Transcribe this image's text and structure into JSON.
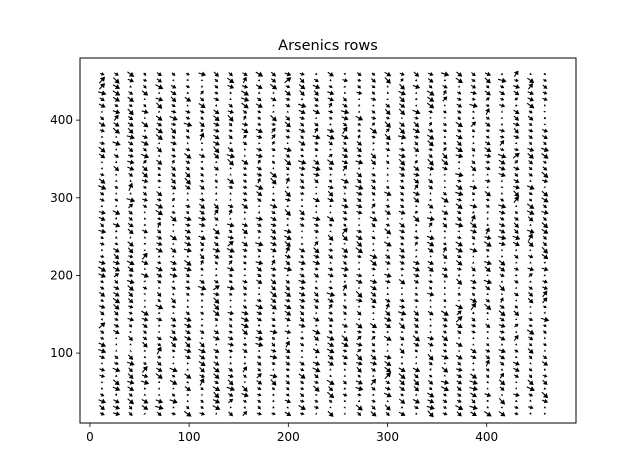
{
  "chart_data": {
    "type": "quiver",
    "title": "Arsenics rows",
    "xlabel": "",
    "ylabel": "",
    "xlim": [
      -10,
      490
    ],
    "ylim": [
      10,
      480
    ],
    "xticks": [
      0,
      100,
      200,
      300,
      400
    ],
    "yticks": [
      100,
      200,
      300,
      400
    ],
    "grid": false,
    "arrow_color": "#000000",
    "field": {
      "x_start": 12,
      "x_end": 468,
      "x_step": 14.4,
      "y_start": 22,
      "y_end": 466,
      "y_step": 8.1,
      "dominant_direction": "down-right",
      "max_arrow_length": 8
    }
  }
}
